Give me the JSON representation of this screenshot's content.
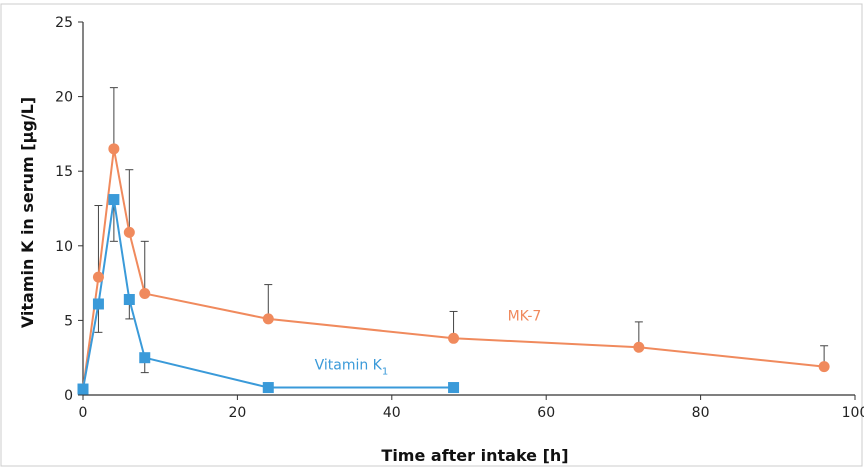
{
  "chart_data": {
    "type": "line",
    "xlabel": "Time after intake [h]",
    "ylabel": "Vitamin K in serum [µg/L]",
    "xlim": [
      0,
      100
    ],
    "ylim": [
      0,
      25
    ],
    "x_ticks": [
      0,
      20,
      40,
      60,
      80,
      100
    ],
    "y_ticks": [
      0,
      5,
      10,
      15,
      20,
      25
    ],
    "grid": false,
    "series": [
      {
        "name": "MK-7",
        "label_main": "MK-7",
        "label_sub": "",
        "color": "#f08a5d",
        "marker": "circle",
        "x": [
          0,
          2,
          4,
          6,
          8,
          24,
          48,
          72,
          96
        ],
        "y": [
          0.4,
          7.9,
          16.5,
          10.9,
          6.8,
          5.1,
          3.8,
          3.2,
          1.9
        ],
        "error_upper": [
          null,
          12.7,
          20.6,
          15.1,
          10.3,
          7.4,
          5.6,
          4.9,
          3.3
        ]
      },
      {
        "name": "Vitamin K1",
        "label_main": "Vitamin K",
        "label_sub": "1",
        "color": "#3a9ad9",
        "marker": "square",
        "x": [
          0,
          2,
          4,
          6,
          8,
          24,
          48
        ],
        "y": [
          0.4,
          6.1,
          13.1,
          6.4,
          2.5,
          0.5,
          0.5
        ],
        "error_lower": [
          null,
          4.2,
          10.3,
          5.1,
          1.5,
          null,
          null
        ]
      }
    ]
  }
}
